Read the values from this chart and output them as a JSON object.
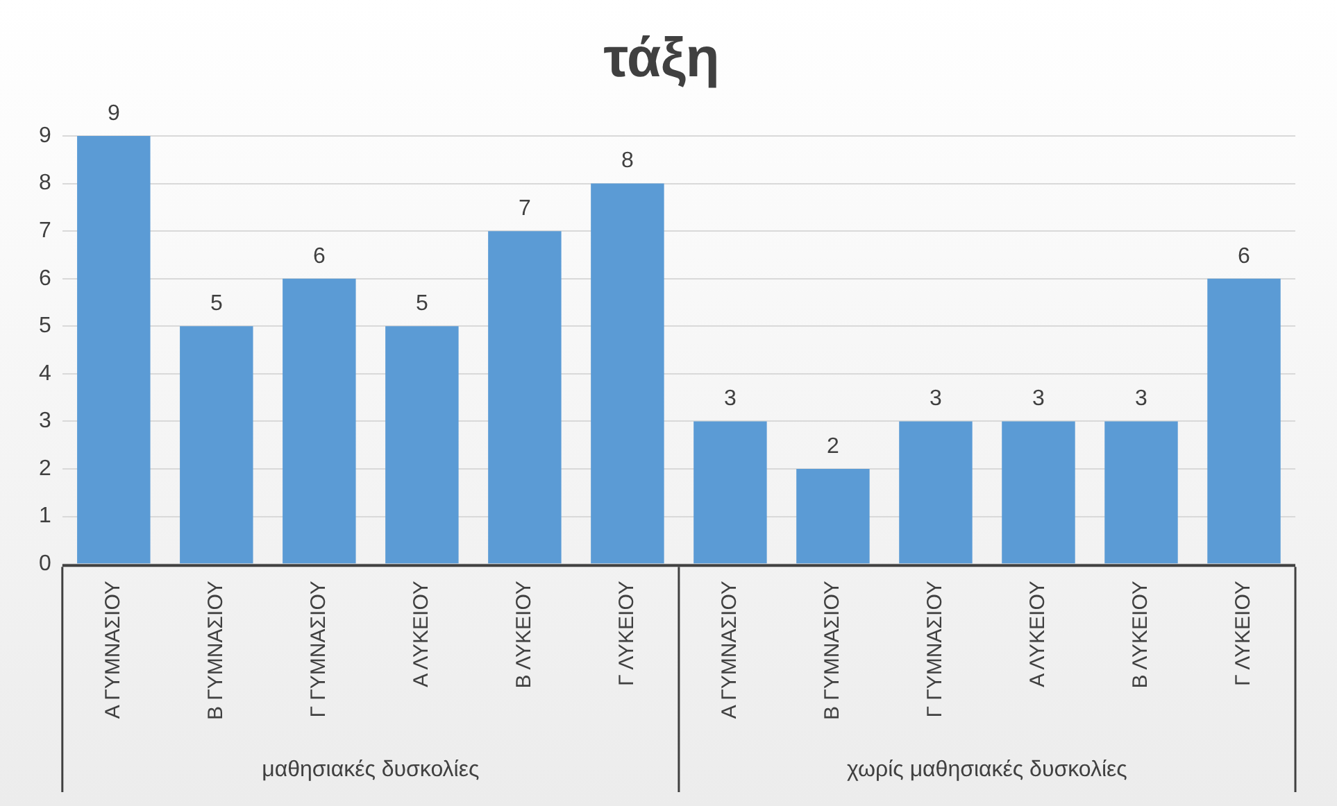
{
  "chart_data": {
    "type": "bar",
    "title": "τάξη",
    "categories": [
      "Α ΓΥΜΝΑΣΙΟΥ",
      "Β ΓΥΜΝΑΣΙΟΥ",
      "Γ ΓΥΜΝΑΣΙΟΥ",
      "Α ΛΥΚΕΙΟΥ",
      "Β ΛΥΚΕΙΟΥ",
      "Γ ΛΥΚΕΙΟΥ",
      "Α ΓΥΜΝΑΣΙΟΥ",
      "Β ΓΥΜΝΑΣΙΟΥ",
      "Γ ΓΥΜΝΑΣΙΟΥ",
      "Α ΛΥΚΕΙΟΥ",
      "Β ΛΥΚΕΙΟΥ",
      "Γ ΛΥΚΕΙΟΥ"
    ],
    "values": [
      9,
      5,
      6,
      5,
      7,
      8,
      3,
      2,
      3,
      3,
      3,
      6
    ],
    "color": "#5b9bd5",
    "ylim": [
      0,
      9
    ],
    "yticks": [
      0,
      1,
      2,
      3,
      4,
      5,
      6,
      7,
      8,
      9
    ],
    "grid": "y",
    "legend": false,
    "data_labels": true,
    "annotations": [
      "μαθησιακές δυσκολίες",
      "χωρίς μαθησιακές δυσκολίες"
    ]
  }
}
